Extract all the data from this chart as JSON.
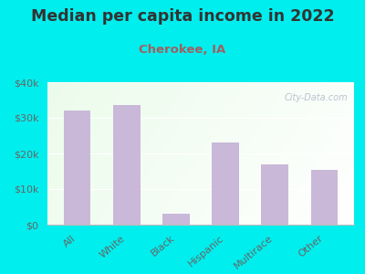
{
  "title": "Median per capita income in 2022",
  "subtitle": "Cherokee, IA",
  "categories": [
    "All",
    "White",
    "Black",
    "Hispanic",
    "Multirace",
    "Other"
  ],
  "values": [
    32000,
    33500,
    3000,
    23000,
    17000,
    15500
  ],
  "bar_color": "#c9b8d8",
  "background_outer": "#00EEEE",
  "title_color": "#333333",
  "subtitle_color": "#a06060",
  "tick_label_color": "#666666",
  "watermark_text": "City-Data.com",
  "ylim": [
    0,
    40000
  ],
  "yticks": [
    0,
    10000,
    20000,
    30000,
    40000
  ],
  "ytick_labels": [
    "$0",
    "$10k",
    "$20k",
    "$30k",
    "$40k"
  ],
  "title_fontsize": 12.5,
  "subtitle_fontsize": 9.5,
  "tick_fontsize": 8
}
